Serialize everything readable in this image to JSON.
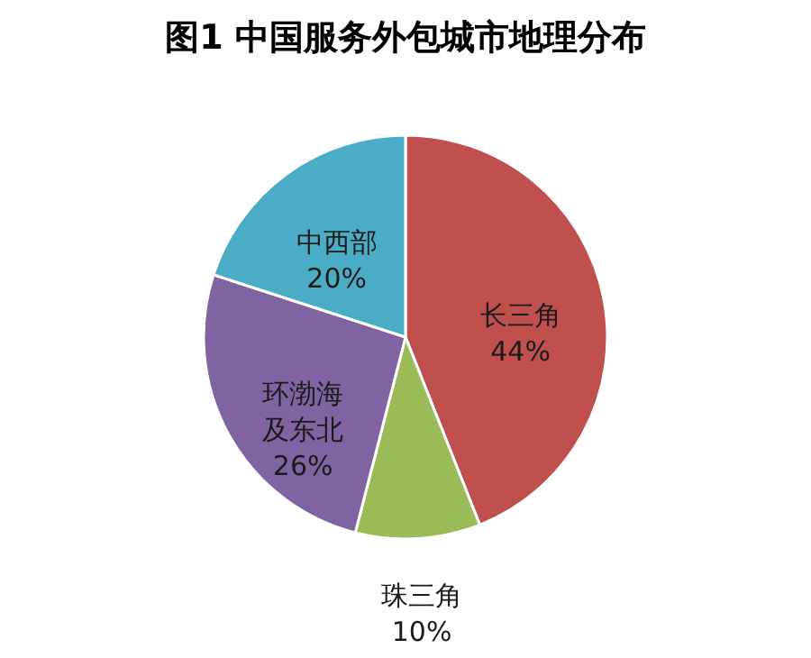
{
  "chart_data": {
    "type": "pie",
    "title": "图1 中国服务外包城市地理分布",
    "categories": [
      "长三角",
      "珠三角",
      "环渤海及东北",
      "中西部"
    ],
    "values": [
      44,
      10,
      26,
      20
    ],
    "value_labels": [
      "44%",
      "10%",
      "26%",
      "20%"
    ],
    "colors": [
      "#c0504d",
      "#9bbb59",
      "#8064a2",
      "#4bacc6"
    ],
    "legend": false
  }
}
